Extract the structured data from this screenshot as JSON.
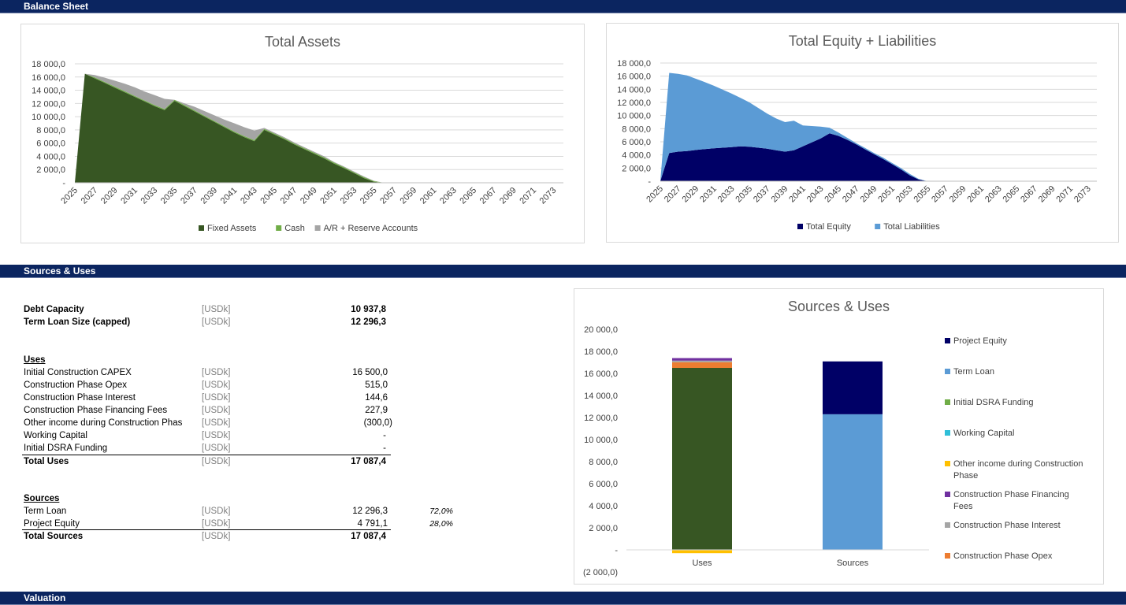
{
  "sections": {
    "balance_sheet": "Balance Sheet",
    "sources_uses": "Sources & Uses",
    "valuation": "Valuation"
  },
  "debt": {
    "capacity_label": "Debt Capacity",
    "capacity_unit": "[USDk]",
    "capacity_value": "10 937,8",
    "term_label": "Term Loan Size (capped)",
    "term_unit": "[USDk]",
    "term_value": "12 296,3"
  },
  "uses": {
    "header": "Uses",
    "rows": [
      {
        "label": "Initial Construction CAPEX",
        "unit": "[USDk]",
        "value": "16 500,0"
      },
      {
        "label": "Construction Phase Opex",
        "unit": "[USDk]",
        "value": "515,0"
      },
      {
        "label": "Construction Phase Interest",
        "unit": "[USDk]",
        "value": "144,6"
      },
      {
        "label": "Construction Phase Financing Fees",
        "unit": "[USDk]",
        "value": "227,9"
      },
      {
        "label": "Other income during Construction Phas",
        "unit": "[USDk]",
        "value": "(300,0)"
      },
      {
        "label": "Working Capital",
        "unit": "[USDk]",
        "value": "-"
      },
      {
        "label": "Initial DSRA Funding",
        "unit": "[USDk]",
        "value": "-"
      }
    ],
    "total_label": "Total Uses",
    "total_unit": "[USDk]",
    "total_value": "17 087,4"
  },
  "sources": {
    "header": "Sources",
    "rows": [
      {
        "label": "Term Loan",
        "unit": "[USDk]",
        "value": "12 296,3",
        "pct": "72,0%"
      },
      {
        "label": "Project Equity",
        "unit": "[USDk]",
        "value": "4 791,1",
        "pct": "28,0%"
      }
    ],
    "total_label": "Total Sources",
    "total_unit": "[USDk]",
    "total_value": "17 087,4"
  },
  "chart_data": [
    {
      "type": "area",
      "title": "Total Assets",
      "stacked": true,
      "x": [
        2025,
        2026,
        2027,
        2028,
        2029,
        2030,
        2031,
        2032,
        2033,
        2034,
        2035,
        2036,
        2037,
        2038,
        2039,
        2040,
        2041,
        2042,
        2043,
        2044,
        2045,
        2046,
        2047,
        2048,
        2049,
        2050,
        2051,
        2052,
        2053,
        2054,
        2055,
        2056,
        2057,
        2058,
        2059,
        2060,
        2061,
        2062,
        2063,
        2064,
        2065,
        2066,
        2067,
        2068,
        2069,
        2070,
        2071,
        2072,
        2073,
        2074
      ],
      "x_tick_labels": [
        "2025",
        "2027",
        "2029",
        "2031",
        "2033",
        "2035",
        "2037",
        "2039",
        "2041",
        "2043",
        "2045",
        "2047",
        "2049",
        "2051",
        "2053",
        "2055",
        "2057",
        "2059",
        "2061",
        "2063",
        "2065",
        "2067",
        "2069",
        "2071",
        "2073"
      ],
      "series": [
        {
          "name": "Fixed Assets",
          "color": "#375623",
          "values": [
            0,
            16500,
            15800,
            15100,
            14400,
            13700,
            13000,
            12300,
            11600,
            11000,
            12400,
            11600,
            10800,
            10000,
            9200,
            8400,
            7600,
            6900,
            6300,
            8000,
            7300,
            6600,
            5800,
            5100,
            4400,
            3700,
            2900,
            2200,
            1450,
            700,
            150,
            0,
            0,
            0,
            0,
            0,
            0,
            0,
            0,
            0,
            0,
            0,
            0,
            0,
            0,
            0,
            0,
            0,
            0,
            0
          ]
        },
        {
          "name": "Cash",
          "color": "#70ad47",
          "values": [
            0,
            0,
            150,
            150,
            150,
            150,
            150,
            150,
            150,
            150,
            150,
            150,
            150,
            150,
            150,
            150,
            150,
            150,
            150,
            150,
            150,
            150,
            150,
            150,
            150,
            150,
            150,
            150,
            150,
            150,
            100,
            0,
            0,
            0,
            0,
            0,
            0,
            0,
            0,
            0,
            0,
            0,
            0,
            0,
            0,
            0,
            0,
            0,
            0,
            0
          ]
        },
        {
          "name": "A/R + Reserve Accounts",
          "color": "#a5a5a5",
          "values": [
            0,
            0,
            350,
            650,
            900,
            1150,
            1300,
            1350,
            1500,
            1550,
            0,
            250,
            550,
            700,
            850,
            1000,
            1250,
            1350,
            1450,
            150,
            150,
            150,
            150,
            150,
            150,
            150,
            100,
            100,
            100,
            100,
            50,
            0,
            0,
            0,
            0,
            0,
            0,
            0,
            0,
            0,
            0,
            0,
            0,
            0,
            0,
            0,
            0,
            0,
            0,
            0
          ]
        }
      ],
      "y_ticks": [
        "-",
        "2 000,0",
        "4 000,0",
        "6 000,0",
        "8 000,0",
        "10 000,0",
        "12 000,0",
        "14 000,0",
        "16 000,0",
        "18 000,0"
      ],
      "ylim": [
        0,
        18000
      ],
      "legend_position": "bottom",
      "grid": true
    },
    {
      "type": "area",
      "title": "Total Equity + Liabilities",
      "stacked": true,
      "x": [
        2025,
        2026,
        2027,
        2028,
        2029,
        2030,
        2031,
        2032,
        2033,
        2034,
        2035,
        2036,
        2037,
        2038,
        2039,
        2040,
        2041,
        2042,
        2043,
        2044,
        2045,
        2046,
        2047,
        2048,
        2049,
        2050,
        2051,
        2052,
        2053,
        2054,
        2055,
        2056,
        2057,
        2058,
        2059,
        2060,
        2061,
        2062,
        2063,
        2064,
        2065,
        2066,
        2067,
        2068,
        2069,
        2070,
        2071,
        2072,
        2073,
        2074
      ],
      "x_tick_labels": [
        "2025",
        "2027",
        "2029",
        "2031",
        "2033",
        "2035",
        "2037",
        "2039",
        "2041",
        "2043",
        "2045",
        "2047",
        "2049",
        "2051",
        "2053",
        "2055",
        "2057",
        "2059",
        "2061",
        "2063",
        "2065",
        "2067",
        "2069",
        "2071",
        "2073"
      ],
      "series": [
        {
          "name": "Total Equity",
          "color": "#000066",
          "values": [
            0,
            4300,
            4500,
            4600,
            4750,
            4900,
            5000,
            5100,
            5200,
            5300,
            5250,
            5100,
            4950,
            4700,
            4500,
            4700,
            5300,
            5900,
            6500,
            7300,
            6900,
            6300,
            5600,
            4850,
            4100,
            3400,
            2600,
            1800,
            900,
            250,
            0,
            0,
            0,
            0,
            0,
            0,
            0,
            0,
            0,
            0,
            0,
            0,
            0,
            0,
            0,
            0,
            0,
            0,
            0,
            0
          ]
        },
        {
          "name": "Total Liabilities",
          "color": "#5b9bd5",
          "values": [
            0,
            12200,
            11850,
            11500,
            10850,
            10200,
            9550,
            8850,
            8150,
            7400,
            6750,
            6050,
            5350,
            4850,
            4500,
            4500,
            3200,
            2500,
            1800,
            850,
            500,
            300,
            200,
            200,
            200,
            200,
            200,
            200,
            200,
            100,
            0,
            0,
            0,
            0,
            0,
            0,
            0,
            0,
            0,
            0,
            0,
            0,
            0,
            0,
            0,
            0,
            0,
            0,
            0,
            0
          ]
        }
      ],
      "y_ticks": [
        "-",
        "2 000,0",
        "4 000,0",
        "6 000,0",
        "8 000,0",
        "10 000,0",
        "12 000,0",
        "14 000,0",
        "16 000,0",
        "18 000,0"
      ],
      "ylim": [
        0,
        18000
      ],
      "legend_position": "bottom",
      "grid": true
    },
    {
      "type": "bar",
      "title": "Sources & Uses",
      "stacked": true,
      "categories": [
        "Uses",
        "Sources"
      ],
      "series": [
        {
          "name": "Project Equity",
          "color": "#000066",
          "values": [
            0,
            4791.1
          ]
        },
        {
          "name": "Term Loan",
          "color": "#5b9bd5",
          "values": [
            0,
            12296.3
          ]
        },
        {
          "name": "Initial DSRA Funding",
          "color": "#70ad47",
          "values": [
            0,
            0
          ]
        },
        {
          "name": "Working Capital",
          "color": "#2fbfd8",
          "values": [
            0,
            0
          ]
        },
        {
          "name": "Other income during Construction Phase",
          "color": "#ffc000",
          "values": [
            -300,
            0
          ]
        },
        {
          "name": "Construction Phase Financing Fees",
          "color": "#7030a0",
          "values": [
            227.9,
            0
          ]
        },
        {
          "name": "Construction Phase Interest",
          "color": "#a5a5a5",
          "values": [
            144.6,
            0
          ]
        },
        {
          "name": "Construction Phase Opex",
          "color": "#ed7d31",
          "values": [
            515,
            0
          ]
        },
        {
          "name": "",
          "color": "#375623",
          "values": [
            16500,
            0
          ]
        }
      ],
      "y_ticks": [
        "(2 000,0)",
        "-",
        "2 000,0",
        "4 000,0",
        "6 000,0",
        "8 000,0",
        "10 000,0",
        "12 000,0",
        "14 000,0",
        "16 000,0",
        "18 000,0",
        "20 000,0"
      ],
      "ylim": [
        -2000,
        20000
      ],
      "legend_position": "right",
      "grid": false
    }
  ]
}
